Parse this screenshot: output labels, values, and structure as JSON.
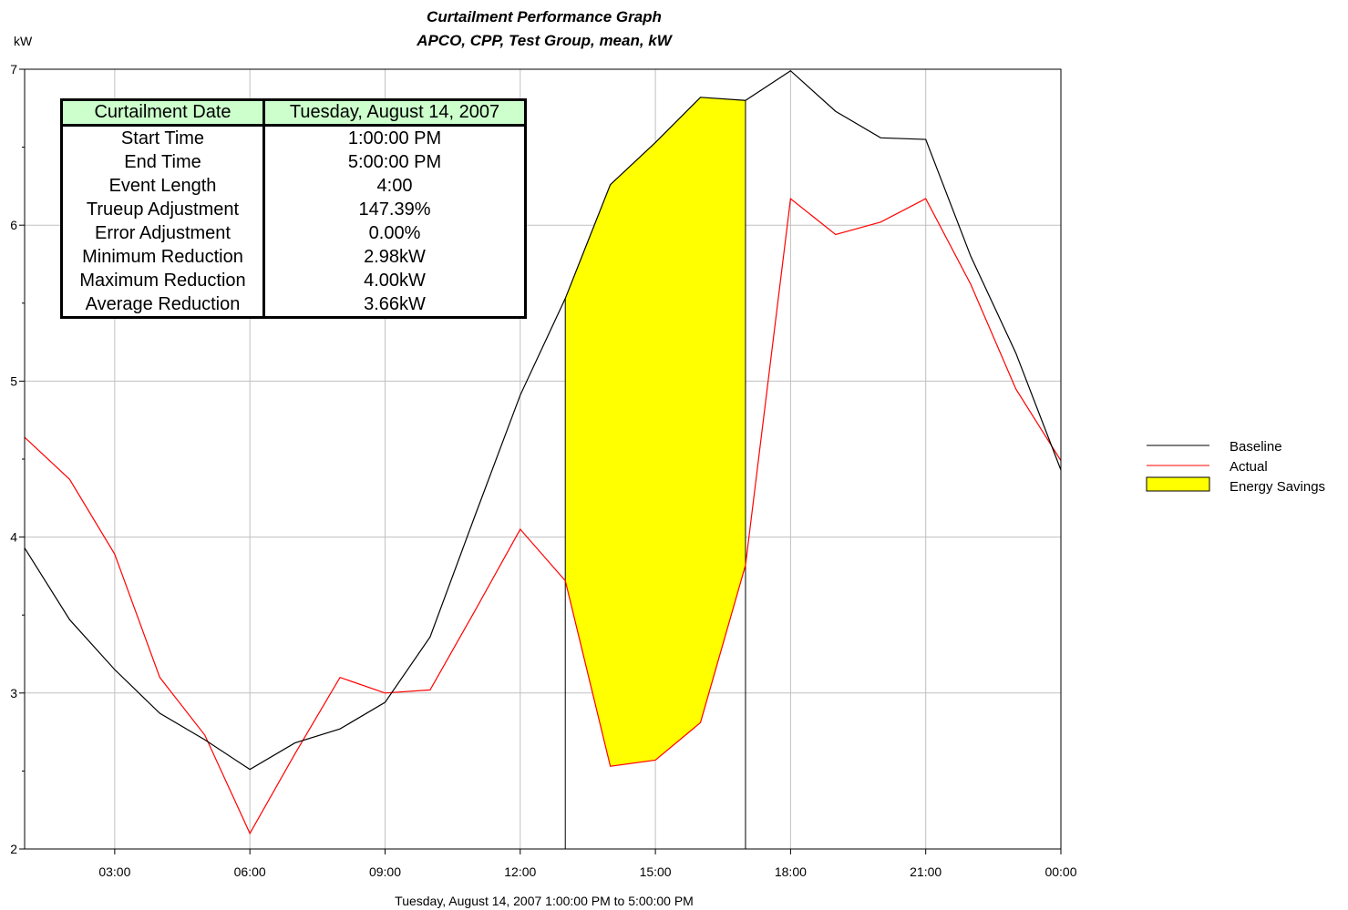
{
  "chart_data": {
    "type": "line",
    "title": "Curtailment Performance Graph",
    "subtitle": "APCO, CPP, Test Group, mean, kW",
    "ylabel": "kW",
    "xlabel": "Tuesday, August 14, 2007 1:00:00 PM to 5:00:00 PM",
    "ylim": [
      2,
      7
    ],
    "xlim": [
      1,
      24
    ],
    "yticks": [
      2,
      3,
      4,
      5,
      6,
      7
    ],
    "xticks": [
      {
        "value": 3,
        "label": "03:00"
      },
      {
        "value": 6,
        "label": "06:00"
      },
      {
        "value": 9,
        "label": "09:00"
      },
      {
        "value": 12,
        "label": "12:00"
      },
      {
        "value": 15,
        "label": "15:00"
      },
      {
        "value": 18,
        "label": "18:00"
      },
      {
        "value": 21,
        "label": "21:00"
      },
      {
        "value": 24,
        "label": "00:00"
      }
    ],
    "grid": true,
    "legend_position": "right",
    "event_window": [
      13,
      17
    ],
    "series": [
      {
        "name": "Baseline",
        "color": "#000000",
        "x": [
          1,
          2,
          3,
          4,
          5,
          6,
          7,
          8,
          9,
          10,
          11,
          12,
          13,
          14,
          15,
          16,
          17,
          18,
          19,
          20,
          21,
          22,
          23,
          24
        ],
        "values": [
          3.93,
          3.47,
          3.15,
          2.87,
          2.7,
          2.51,
          2.68,
          2.77,
          2.94,
          3.36,
          4.14,
          4.91,
          5.53,
          6.26,
          6.53,
          6.82,
          6.8,
          6.99,
          6.73,
          6.56,
          6.55,
          5.8,
          5.18,
          4.43
        ]
      },
      {
        "name": "Actual",
        "color": "#ff0000",
        "x": [
          1,
          2,
          3,
          4,
          5,
          6,
          7,
          8,
          9,
          10,
          11,
          12,
          13,
          14,
          15,
          16,
          17,
          18,
          19,
          20,
          21,
          22,
          23,
          24
        ],
        "values": [
          4.64,
          4.37,
          3.89,
          3.1,
          2.73,
          2.1,
          2.61,
          3.1,
          3.0,
          3.02,
          3.53,
          4.05,
          3.72,
          2.53,
          2.57,
          2.81,
          3.82,
          6.17,
          5.94,
          6.02,
          6.17,
          5.62,
          4.95,
          4.49
        ]
      }
    ],
    "fill": {
      "name": "Energy Savings",
      "color": "#ffff00",
      "between": [
        "Baseline",
        "Actual"
      ],
      "x_range": [
        13,
        17
      ]
    }
  },
  "info_table": {
    "header": {
      "label": "Curtailment Date",
      "value": "Tuesday, August 14, 2007"
    },
    "rows": [
      {
        "label": "Start Time",
        "value": "1:00:00 PM"
      },
      {
        "label": "End Time",
        "value": "5:00:00 PM"
      },
      {
        "label": "Event Length",
        "value": "4:00"
      },
      {
        "label": "Trueup Adjustment",
        "value": "147.39%"
      },
      {
        "label": "Error Adjustment",
        "value": "0.00%"
      },
      {
        "label": "Minimum Reduction",
        "value": "2.98kW"
      },
      {
        "label": "Maximum Reduction",
        "value": "4.00kW"
      },
      {
        "label": "Average Reduction",
        "value": "3.66kW"
      }
    ]
  }
}
